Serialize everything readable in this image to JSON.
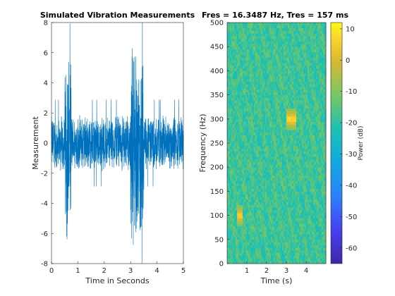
{
  "chart_data": [
    {
      "type": "line",
      "title": "Simulated Vibration Measurements",
      "xlabel": "Time in Seconds",
      "ylabel": "Measurement",
      "xlim": [
        0,
        5
      ],
      "ylim": [
        -8,
        8
      ],
      "xticks": [
        "0",
        "1",
        "2",
        "3",
        "4",
        "5"
      ],
      "yticks": [
        "-8",
        "-6",
        "-4",
        "-2",
        "0",
        "2",
        "4",
        "6",
        "8"
      ],
      "color": "#0072BD",
      "baseline_amplitude": 2.0,
      "bursts": [
        {
          "start": 0.5,
          "end": 0.75,
          "amplitude": 6.9
        },
        {
          "start": 3.0,
          "end": 3.5,
          "amplitude": 7.1
        }
      ]
    },
    {
      "type": "heatmap",
      "title": "Fres = 16.3487 Hz, Tres = 157 ms",
      "xlabel": "Time (s)",
      "ylabel": "Frequency (Hz)",
      "xlim": [
        0,
        5
      ],
      "ylim": [
        0,
        500
      ],
      "xticks": [
        "1",
        "2",
        "3",
        "4"
      ],
      "yticks": [
        "0",
        "50",
        "100",
        "150",
        "200",
        "250",
        "300",
        "350",
        "400",
        "450",
        "500"
      ],
      "colorbar": {
        "label": "Power (dB)",
        "range": [
          -65,
          12
        ],
        "ticks": [
          "10",
          "0",
          "-10",
          "-20",
          "-30",
          "-40",
          "-50",
          "-60"
        ]
      },
      "hotspots": [
        {
          "time_start": 0.5,
          "time_end": 0.75,
          "freq_low": 80,
          "freq_high": 120,
          "power_db": 8
        },
        {
          "time_start": 3.0,
          "time_end": 3.5,
          "freq_low": 280,
          "freq_high": 320,
          "power_db": 10
        }
      ],
      "background_power_db": -18
    }
  ]
}
